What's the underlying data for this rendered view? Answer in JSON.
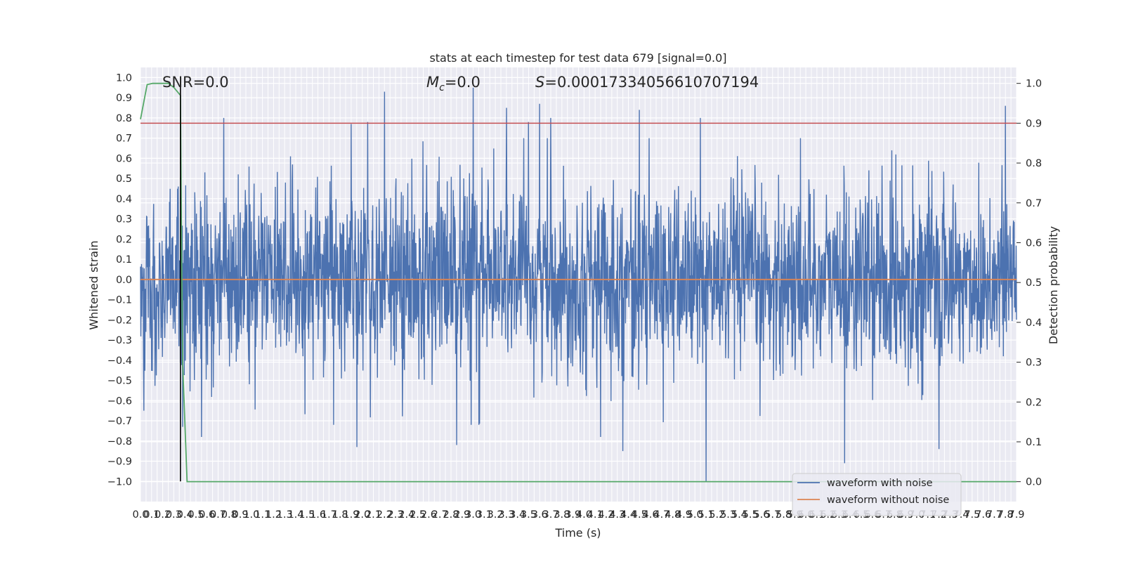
{
  "chart_data": {
    "type": "line",
    "title": "stats at each timestep for test data 679 [signal=0.0]",
    "xlabel": "Time (s)",
    "ylabel_left": "Whitened strain",
    "ylabel_right": "Detection probability",
    "xlim": [
      0.0,
      7.9
    ],
    "ylim_left": [
      -1.1,
      1.05
    ],
    "ylim_right": [
      -0.05,
      1.04
    ],
    "x_tick_step": 0.05,
    "y_ticks_left": [
      1.0,
      0.9,
      0.8,
      0.7,
      0.6,
      0.5,
      0.4,
      0.3,
      0.2,
      0.1,
      0.0,
      -0.1,
      -0.2,
      -0.3,
      -0.4,
      -0.5,
      -0.6,
      -0.7,
      -0.8,
      -0.9,
      -1.0
    ],
    "y_ticks_right": [
      1.0,
      0.9,
      0.8,
      0.7,
      0.6,
      0.5,
      0.4,
      0.3,
      0.2,
      0.1,
      0.0
    ],
    "annotations": {
      "snr": "SNR=0.0",
      "mc": "=0.0",
      "mc_symbol": "M",
      "mc_subscript": "c",
      "s": "=0.00017334056610707194",
      "s_symbol": "S"
    },
    "series": [
      {
        "name": "waveform with noise",
        "axis": "left",
        "color": "#4c72b0",
        "kind": "noise",
        "typical_envelope": [
          -0.45,
          0.45
        ],
        "peaks": [
          [
            0.75,
            0.8
          ],
          [
            1.9,
            0.77
          ],
          [
            2.05,
            0.78
          ],
          [
            2.2,
            0.93
          ],
          [
            3.0,
            0.95
          ],
          [
            3.3,
            0.85
          ],
          [
            3.6,
            0.87
          ],
          [
            3.7,
            0.8
          ],
          [
            4.5,
            0.84
          ],
          [
            5.05,
            0.8
          ],
          [
            7.8,
            0.86
          ],
          [
            3.5,
            0.78
          ]
        ],
        "troughs": [
          [
            0.03,
            -0.65
          ],
          [
            0.38,
            -0.73
          ],
          [
            0.55,
            -0.78
          ],
          [
            1.95,
            -0.83
          ],
          [
            2.85,
            -0.82
          ],
          [
            4.15,
            -0.78
          ],
          [
            4.35,
            -0.85
          ],
          [
            5.1,
            -1.0
          ],
          [
            6.35,
            -0.91
          ],
          [
            7.2,
            -0.84
          ]
        ]
      },
      {
        "name": "waveform without noise",
        "axis": "left",
        "color": "#dd8452",
        "x": [
          0.0,
          7.9
        ],
        "y": [
          0.0,
          0.0
        ]
      },
      {
        "name": "",
        "axis": "right",
        "color": "#55a868",
        "x": [
          0.0,
          0.06,
          0.11,
          0.2,
          0.25,
          0.3,
          0.36,
          0.37,
          0.38,
          0.42,
          7.9
        ],
        "y": [
          0.91,
          0.997,
          1.0,
          1.0,
          1.0,
          0.99,
          0.97,
          0.6,
          0.3,
          0.0,
          0.0
        ]
      },
      {
        "name": "",
        "axis": "right",
        "color": "#c44e52",
        "x": [
          0.0,
          7.9
        ],
        "y": [
          0.9,
          0.9
        ]
      }
    ],
    "vertical_marker": {
      "x": 0.36,
      "color": "#000000",
      "y_left": [
        -1.0,
        0.98
      ]
    },
    "legend_position": "lower right",
    "grid": true
  }
}
